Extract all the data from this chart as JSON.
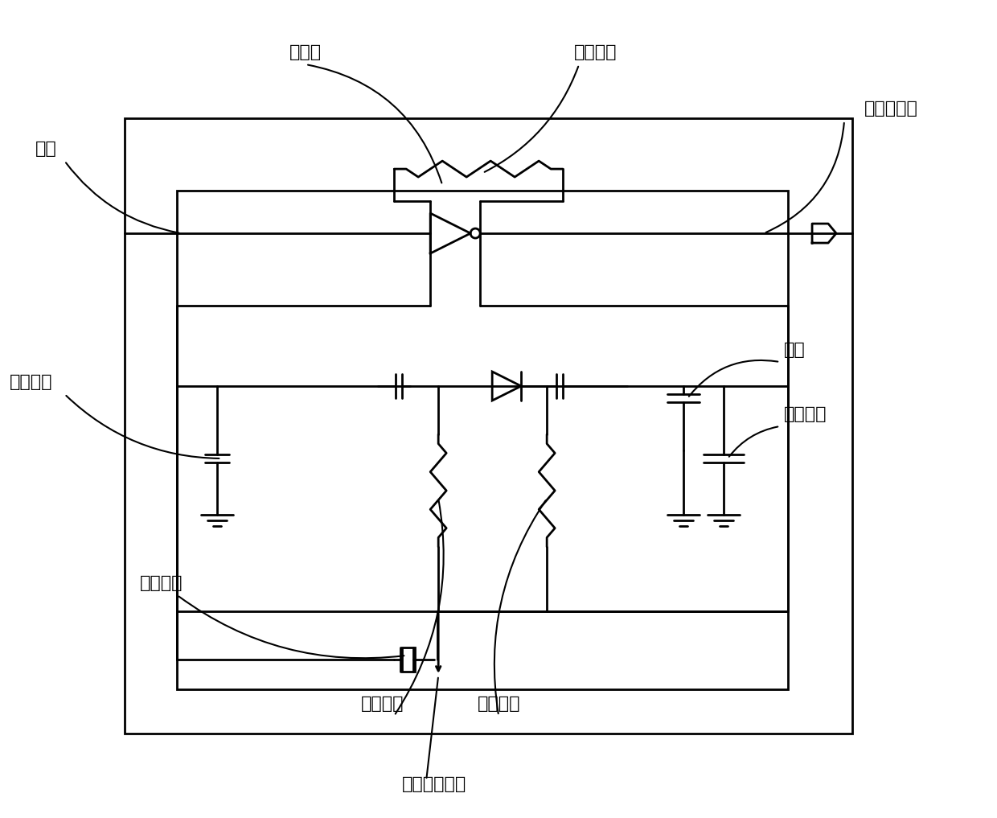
{
  "bg_color": "#ffffff",
  "line_color": "#000000",
  "line_width": 2.0,
  "labels": {
    "inverter": "反相器",
    "feedback_resistor": "反馈电阻",
    "capacitor_left": "电容",
    "varactor": "变容二极管",
    "load_cap_left": "负载电容",
    "capacitor_right": "电容",
    "load_cap_right": "负载电容",
    "quartz": "石英晶体",
    "isolation_res1": "隔离电阻",
    "isolation_res2": "隔离电阻",
    "control_voltage": "控制电压端子"
  },
  "font_size": 16
}
